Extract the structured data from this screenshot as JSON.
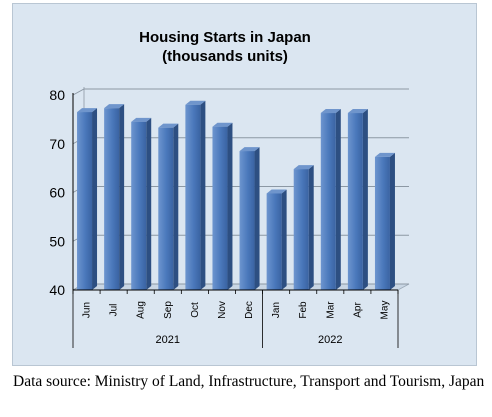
{
  "chart_data": {
    "type": "bar",
    "title": "Housing Starts in Japan",
    "subtitle": "(thousands units)",
    "categories": [
      "Jun",
      "Jul",
      "Aug",
      "Sep",
      "Oct",
      "Nov",
      "Dec",
      "Jan",
      "Feb",
      "Mar",
      "Apr",
      "May"
    ],
    "groups": [
      {
        "label": "2021",
        "count": 7
      },
      {
        "label": "2022",
        "count": 5
      }
    ],
    "values": [
      76.5,
      77.3,
      74.5,
      73.3,
      78.0,
      73.5,
      68.5,
      59.8,
      64.8,
      76.3,
      76.3,
      67.3
    ],
    "ylim": [
      40,
      80
    ],
    "yticks": [
      40,
      50,
      60,
      70,
      80
    ],
    "grid": true,
    "bar_color": "#4a78bb"
  },
  "source_note": "Data source: Ministry of Land, Infrastructure, Transport and Tourism, Japan"
}
